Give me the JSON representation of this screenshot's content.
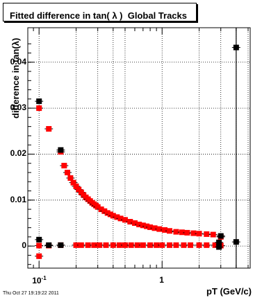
{
  "chart_data": {
    "type": "scatter",
    "title": "Fitted difference in tan( λ )  Global Tracks",
    "xlabel": "pT (GeV/c)",
    "ylabel": "difference in tan(λ)",
    "x_scale": "log",
    "xlim": [
      0.081,
      5.2
    ],
    "ylim": [
      -0.0048,
      0.0475
    ],
    "grid": true,
    "y_ticks": [
      {
        "value": 0,
        "label": "0"
      },
      {
        "value": 0.01,
        "label": "0.01"
      },
      {
        "value": 0.02,
        "label": "0.02"
      },
      {
        "value": 0.03,
        "label": "0.03"
      },
      {
        "value": 0.04,
        "label": "0.04"
      }
    ],
    "x_ticks": [
      {
        "value": 0.1,
        "label": "10",
        "sup": "-1"
      },
      {
        "value": 1,
        "label": "1",
        "sup": ""
      }
    ],
    "vline_x": 4.0,
    "series": [
      {
        "color": "#ff0000",
        "marker": "square",
        "points": [
          [
            0.1,
            0.03
          ],
          [
            0.1,
            -0.0022
          ],
          [
            0.12,
            0.0255
          ],
          [
            0.15,
            0.0205
          ],
          [
            0.16,
            0.0175
          ],
          [
            0.17,
            0.016
          ],
          [
            0.18,
            0.0148
          ],
          [
            0.19,
            0.0138
          ],
          [
            0.2,
            0.013
          ],
          [
            0.21,
            0.0123
          ],
          [
            0.22,
            0.0117
          ],
          [
            0.23,
            0.0111
          ],
          [
            0.24,
            0.0106
          ],
          [
            0.25,
            0.0102
          ],
          [
            0.26,
            0.0098
          ],
          [
            0.27,
            0.0094
          ],
          [
            0.28,
            0.0091
          ],
          [
            0.29,
            0.0088
          ],
          [
            0.3,
            0.0085
          ],
          [
            0.32,
            0.008
          ],
          [
            0.34,
            0.0076
          ],
          [
            0.36,
            0.0072
          ],
          [
            0.38,
            0.0069
          ],
          [
            0.4,
            0.0066
          ],
          [
            0.43,
            0.0063
          ],
          [
            0.46,
            0.006
          ],
          [
            0.5,
            0.0057
          ],
          [
            0.55,
            0.0053
          ],
          [
            0.6,
            0.005
          ],
          [
            0.65,
            0.0047
          ],
          [
            0.7,
            0.0045
          ],
          [
            0.75,
            0.0043
          ],
          [
            0.8,
            0.0041
          ],
          [
            0.87,
            0.0039
          ],
          [
            0.95,
            0.0037
          ],
          [
            1.05,
            0.0035
          ],
          [
            1.15,
            0.0033
          ],
          [
            1.3,
            0.0031
          ],
          [
            1.45,
            0.003
          ],
          [
            1.6,
            0.0029
          ],
          [
            1.8,
            0.0028
          ],
          [
            2.0,
            0.0027
          ],
          [
            2.3,
            0.0026
          ],
          [
            2.6,
            0.0025
          ],
          [
            3.0,
            0.002
          ],
          [
            0.1,
            0.0001
          ],
          [
            0.12,
            0.0001
          ],
          [
            0.15,
            0.0002
          ],
          [
            0.2,
            0.0002
          ],
          [
            0.22,
            0.0002
          ],
          [
            0.25,
            0.0002
          ],
          [
            0.28,
            0.0002
          ],
          [
            0.31,
            0.0002
          ],
          [
            0.35,
            0.0002
          ],
          [
            0.4,
            0.0002
          ],
          [
            0.45,
            0.0002
          ],
          [
            0.5,
            0.0002
          ],
          [
            0.56,
            0.0002
          ],
          [
            0.63,
            0.0002
          ],
          [
            0.7,
            0.0002
          ],
          [
            0.8,
            0.0002
          ],
          [
            0.9,
            0.0002
          ],
          [
            1.0,
            0.0002
          ],
          [
            1.15,
            0.0002
          ],
          [
            1.3,
            0.0002
          ],
          [
            1.5,
            0.0002
          ],
          [
            1.7,
            0.0002
          ],
          [
            2.0,
            0.0002
          ],
          [
            2.3,
            0.0002
          ],
          [
            2.7,
            0.0002
          ],
          [
            3.0,
            0.0001
          ]
        ]
      },
      {
        "color": "#000000",
        "marker": "square",
        "points": [
          [
            0.1,
            0.0315
          ],
          [
            0.1,
            0.0014
          ],
          [
            0.12,
            0.0002
          ],
          [
            0.15,
            0.0209
          ],
          [
            0.15,
            0.0002
          ],
          [
            2.9,
            0.0008
          ],
          [
            2.9,
            -0.0002
          ],
          [
            3.0,
            0.0022
          ],
          [
            4.0,
            0.0432
          ],
          [
            4.0,
            0.0009
          ]
        ]
      }
    ]
  },
  "footer": {
    "timestamp": "Thu Oct 27 19:19:22 2011"
  }
}
